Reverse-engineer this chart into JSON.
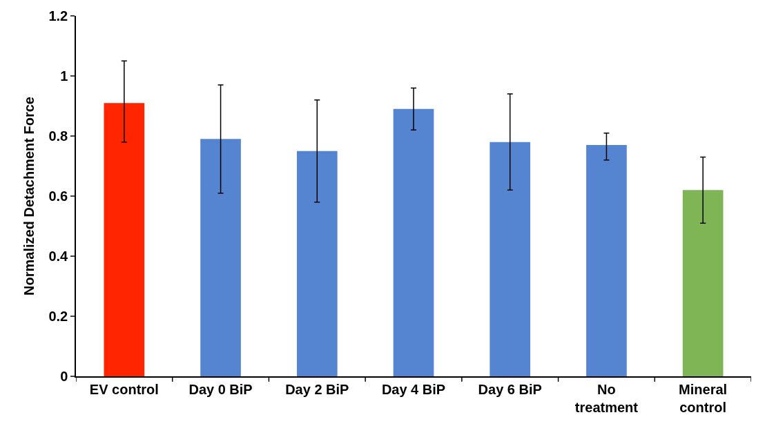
{
  "chart_data": {
    "type": "bar",
    "ylabel": "Normalized Detachment Force",
    "categories": [
      "EV control",
      "Day 0 BiP",
      "Day 2 BiP",
      "Day 4 BiP",
      "Day 6 BiP",
      "No\ntreatment",
      "Mineral\ncontrol"
    ],
    "values": [
      0.91,
      0.79,
      0.75,
      0.89,
      0.78,
      0.77,
      0.62
    ],
    "colors": [
      "#ff2500",
      "#5585d0",
      "#5585d0",
      "#5585d0",
      "#5585d0",
      "#5585d0",
      "#80b556"
    ],
    "errors": [
      [
        0.78,
        1.05
      ],
      [
        0.61,
        0.97
      ],
      [
        0.58,
        0.92
      ],
      [
        0.82,
        0.96
      ],
      [
        0.62,
        0.94
      ],
      [
        0.72,
        0.81
      ],
      [
        0.51,
        0.73
      ]
    ],
    "ylim": [
      0,
      1.2
    ],
    "yticks": [
      0,
      0.2,
      0.4,
      0.6,
      0.8,
      1,
      1.2
    ]
  }
}
